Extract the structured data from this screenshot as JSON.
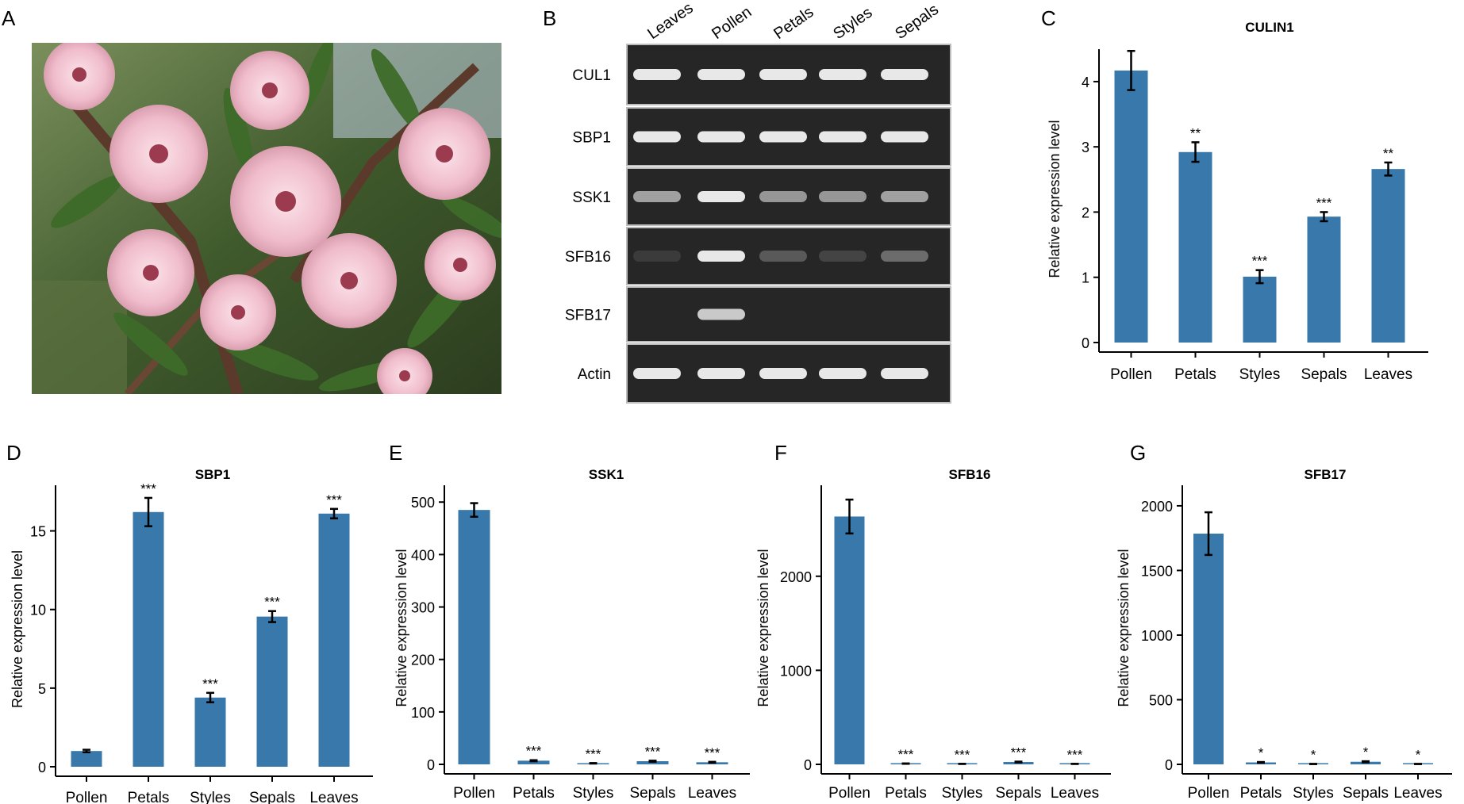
{
  "panels": {
    "A": "A",
    "B": "B",
    "C": "C",
    "D": "D",
    "E": "E",
    "F": "F",
    "G": "G"
  },
  "gel": {
    "lanes": [
      "Leaves",
      "Pollen",
      "Petals",
      "Styles",
      "Sepals"
    ],
    "rows": [
      {
        "label": "CUL1",
        "intensity": [
          0.95,
          0.95,
          0.95,
          0.95,
          0.95
        ]
      },
      {
        "label": "SBP1",
        "intensity": [
          0.95,
          0.95,
          0.95,
          0.95,
          0.95
        ]
      },
      {
        "label": "SSK1",
        "intensity": [
          0.6,
          0.95,
          0.55,
          0.55,
          0.6
        ]
      },
      {
        "label": "SFB16",
        "intensity": [
          0.1,
          0.95,
          0.25,
          0.15,
          0.35
        ]
      },
      {
        "label": "SFB17",
        "intensity": [
          0.0,
          0.8,
          0.0,
          0.0,
          0.0
        ]
      },
      {
        "label": "Actin",
        "intensity": [
          0.95,
          0.95,
          0.95,
          0.95,
          0.95
        ]
      }
    ]
  },
  "colors": {
    "bar": "#3878ab",
    "gel_bg": "#262626",
    "band": "#f2f2f2"
  },
  "chart_data": [
    {
      "id": "C",
      "type": "bar",
      "title": "CULIN1",
      "ylabel": "Relative expression level",
      "categories": [
        "Pollen",
        "Petals",
        "Styles",
        "Sepals",
        "Leaves"
      ],
      "values": [
        4.17,
        2.92,
        1.01,
        1.93,
        2.66
      ],
      "errors": [
        0.3,
        0.15,
        0.1,
        0.07,
        0.1
      ],
      "significance": [
        "",
        "**",
        "***",
        "***",
        "**"
      ],
      "ylim": [
        0,
        4.4
      ],
      "yticks": [
        "0",
        "1",
        "2",
        "3",
        "4"
      ]
    },
    {
      "id": "D",
      "type": "bar",
      "title": "SBP1",
      "ylabel": "Relative expression level",
      "categories": [
        "Pollen",
        "Petals",
        "Styles",
        "Sepals",
        "Leaves"
      ],
      "values": [
        1.0,
        16.2,
        4.4,
        9.55,
        16.1
      ],
      "errors": [
        0.08,
        0.9,
        0.3,
        0.35,
        0.3
      ],
      "significance": [
        "",
        "***",
        "***",
        "***",
        "***"
      ],
      "ylim": [
        0,
        17.5
      ],
      "yticks": [
        "0",
        "5",
        "10",
        "15"
      ]
    },
    {
      "id": "E",
      "type": "bar",
      "title": "SSK1",
      "ylabel": "Relative expression level",
      "categories": [
        "Pollen",
        "Petals",
        "Styles",
        "Sepals",
        "Leaves"
      ],
      "values": [
        485,
        7,
        2,
        6,
        4
      ],
      "errors": [
        13,
        1,
        0.5,
        1,
        0.8
      ],
      "significance": [
        "",
        "***",
        "***",
        "***",
        "***"
      ],
      "ylim": [
        0,
        520
      ],
      "yticks": [
        "0",
        "100",
        "200",
        "300",
        "400",
        "500"
      ]
    },
    {
      "id": "F",
      "type": "bar",
      "title": "SFB16",
      "ylabel": "Relative expression level",
      "categories": [
        "Pollen",
        "Petals",
        "Styles",
        "Sepals",
        "Leaves"
      ],
      "values": [
        2635,
        8,
        5,
        25,
        5
      ],
      "errors": [
        180,
        2,
        1,
        4,
        1
      ],
      "significance": [
        "",
        "***",
        "***",
        "***",
        "***"
      ],
      "ylim": [
        0,
        2900
      ],
      "yticks": [
        "0",
        "1000",
        "2000"
      ]
    },
    {
      "id": "G",
      "type": "bar",
      "title": "SFB17",
      "ylabel": "Relative expression level",
      "categories": [
        "Pollen",
        "Petals",
        "Styles",
        "Sepals",
        "Leaves"
      ],
      "values": [
        1785,
        15,
        3,
        20,
        3
      ],
      "errors": [
        165,
        3,
        1,
        4,
        1
      ],
      "significance": [
        "",
        "*",
        "*",
        "*",
        "*"
      ],
      "ylim": [
        0,
        2110
      ],
      "yticks": [
        "0",
        "500",
        "1000",
        "1500",
        "2000"
      ]
    }
  ]
}
